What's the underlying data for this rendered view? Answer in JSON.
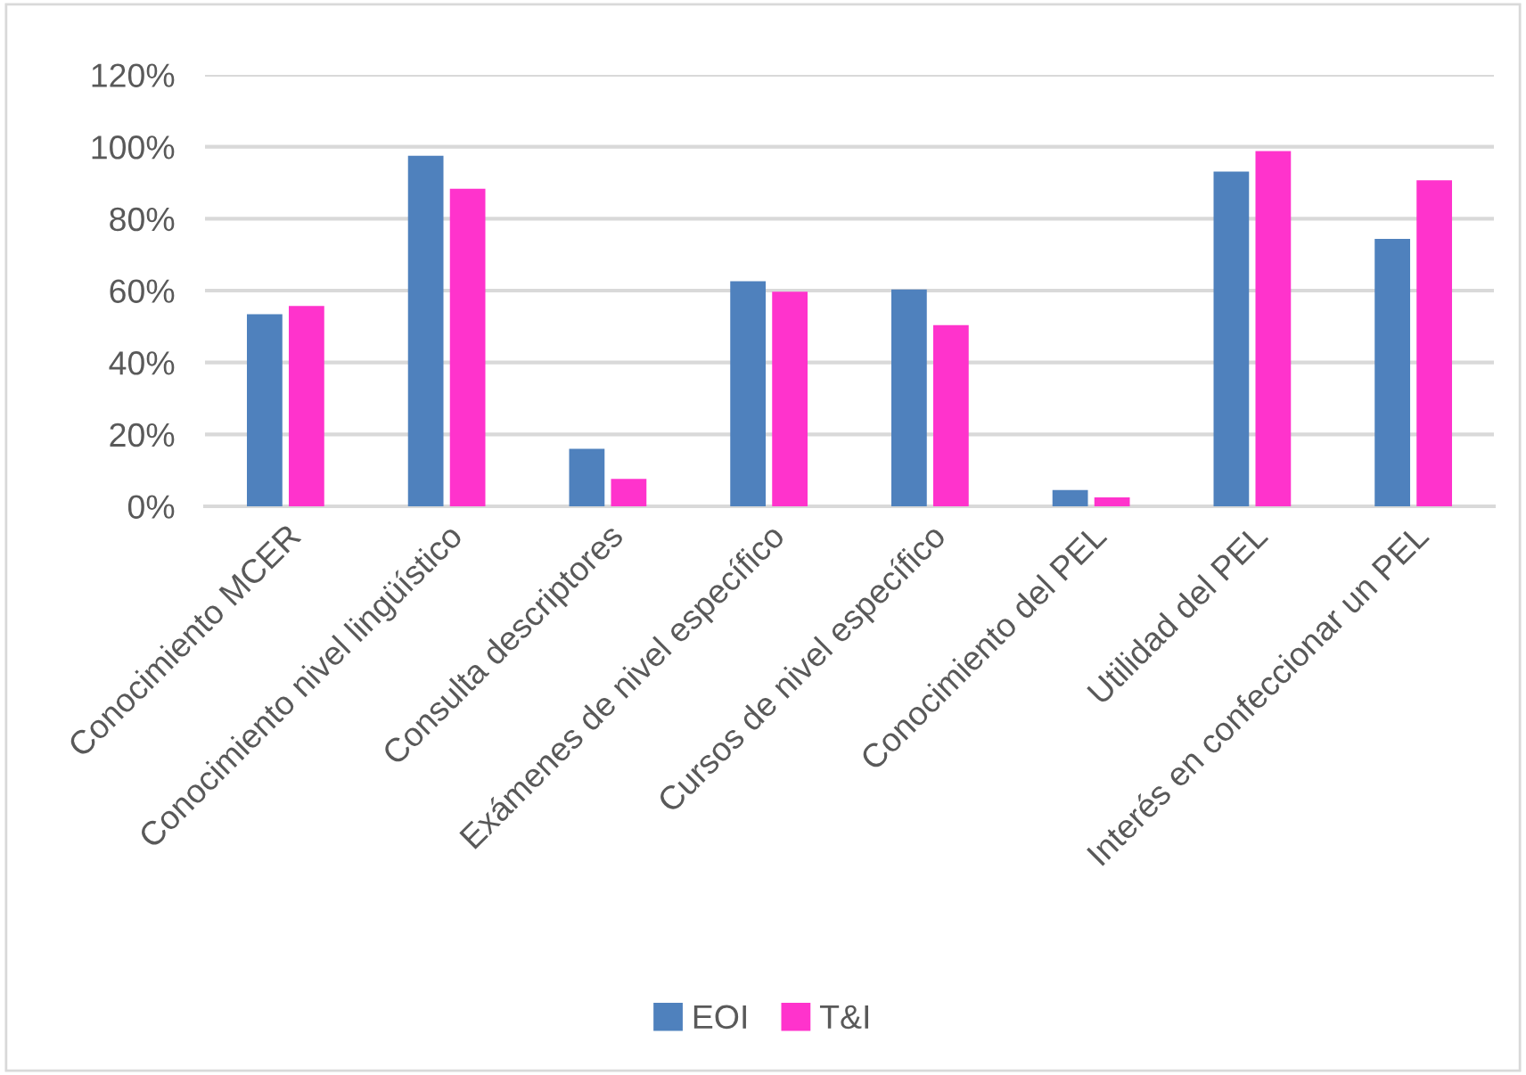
{
  "chart_data": {
    "type": "bar",
    "categories": [
      "Conocimiento MCER",
      "Conocimiento nivel lingüístico",
      "Consulta descriptores",
      "Exámenes de nivel específico",
      "Cursos de nivel específico",
      "Conocimiento del PEL",
      "Utilidad del PEL",
      "Interés en confeccionar un PEL"
    ],
    "series": [
      {
        "name": "EOI",
        "color": "#4f81bd",
        "values": [
          53.4,
          97.5,
          16.0,
          62.6,
          60.3,
          4.5,
          93.1,
          74.4
        ]
      },
      {
        "name": "T&I",
        "color": "#ff33cc",
        "values": [
          55.7,
          88.3,
          7.6,
          59.7,
          50.4,
          2.5,
          98.8,
          90.7
        ]
      }
    ],
    "ylim": [
      0,
      120
    ],
    "yticks": [
      {
        "value": 0,
        "label": "0%"
      },
      {
        "value": 20,
        "label": "20%"
      },
      {
        "value": 40,
        "label": "40%"
      },
      {
        "value": 60,
        "label": "60%"
      },
      {
        "value": 80,
        "label": "80%"
      },
      {
        "value": 100,
        "label": "100%"
      },
      {
        "value": 120,
        "label": "120%"
      }
    ],
    "grid": "y",
    "legend": "bottom"
  }
}
